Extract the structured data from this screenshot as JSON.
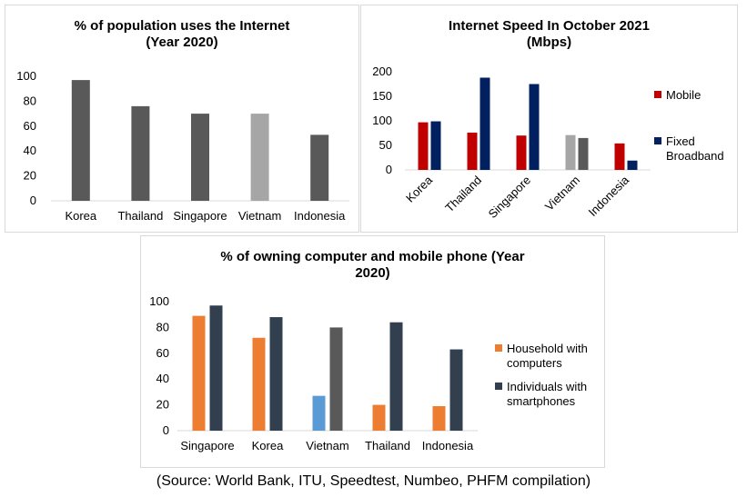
{
  "source": "(Source: World Bank, ITU, Speedtest, Numbeo, PHFM compilation)",
  "chart_data": [
    {
      "type": "bar",
      "title": "% of population uses the Internet\n(Year 2020)",
      "categories": [
        "Korea",
        "Thailand",
        "Singapore",
        "Vietnam",
        "Indonesia"
      ],
      "values": [
        97,
        76,
        70,
        70,
        53
      ],
      "colors": [
        "#595959",
        "#595959",
        "#595959",
        "#a6a6a6",
        "#595959"
      ],
      "ylim": [
        0,
        100
      ],
      "yticks": [
        0,
        20,
        40,
        60,
        80,
        100
      ],
      "grid": false
    },
    {
      "type": "bar",
      "title": "Internet Speed In October 2021\n(Mbps)",
      "categories": [
        "Korea",
        "Thailand",
        "Singapore",
        "Vietnam",
        "Indonesia"
      ],
      "series": [
        {
          "name": "Mobile",
          "values": [
            97,
            76,
            70,
            71,
            54
          ],
          "color": "#c00000",
          "point_colors": [
            "#c00000",
            "#c00000",
            "#c00000",
            "#a6a6a6",
            "#c00000"
          ]
        },
        {
          "name": "Fixed Broadband",
          "values": [
            99,
            188,
            175,
            65,
            19
          ],
          "color": "#002060",
          "point_colors": [
            "#002060",
            "#002060",
            "#002060",
            "#595959",
            "#002060"
          ]
        }
      ],
      "ylim": [
        0,
        200
      ],
      "yticks": [
        0,
        50,
        100,
        150,
        200
      ],
      "legend": "right",
      "grid": false
    },
    {
      "type": "bar",
      "title": "% of owning computer and mobile phone (Year\n2020)",
      "categories": [
        "Singapore",
        "Korea",
        "Vietnam",
        "Thailand",
        "Indonesia"
      ],
      "series": [
        {
          "name": "Household with computers",
          "values": [
            89,
            72,
            27,
            20,
            19
          ],
          "color": "#ed7d31",
          "point_colors": [
            "#ed7d31",
            "#ed7d31",
            "#5b9bd5",
            "#ed7d31",
            "#ed7d31"
          ]
        },
        {
          "name": "Individuals with smartphones",
          "values": [
            97,
            88,
            80,
            84,
            63
          ],
          "color": "#323f4f",
          "point_colors": [
            "#323f4f",
            "#323f4f",
            "#595959",
            "#323f4f",
            "#323f4f"
          ]
        }
      ],
      "ylim": [
        0,
        100
      ],
      "yticks": [
        0,
        20,
        40,
        60,
        80,
        100
      ],
      "legend": "right",
      "grid": false
    }
  ]
}
